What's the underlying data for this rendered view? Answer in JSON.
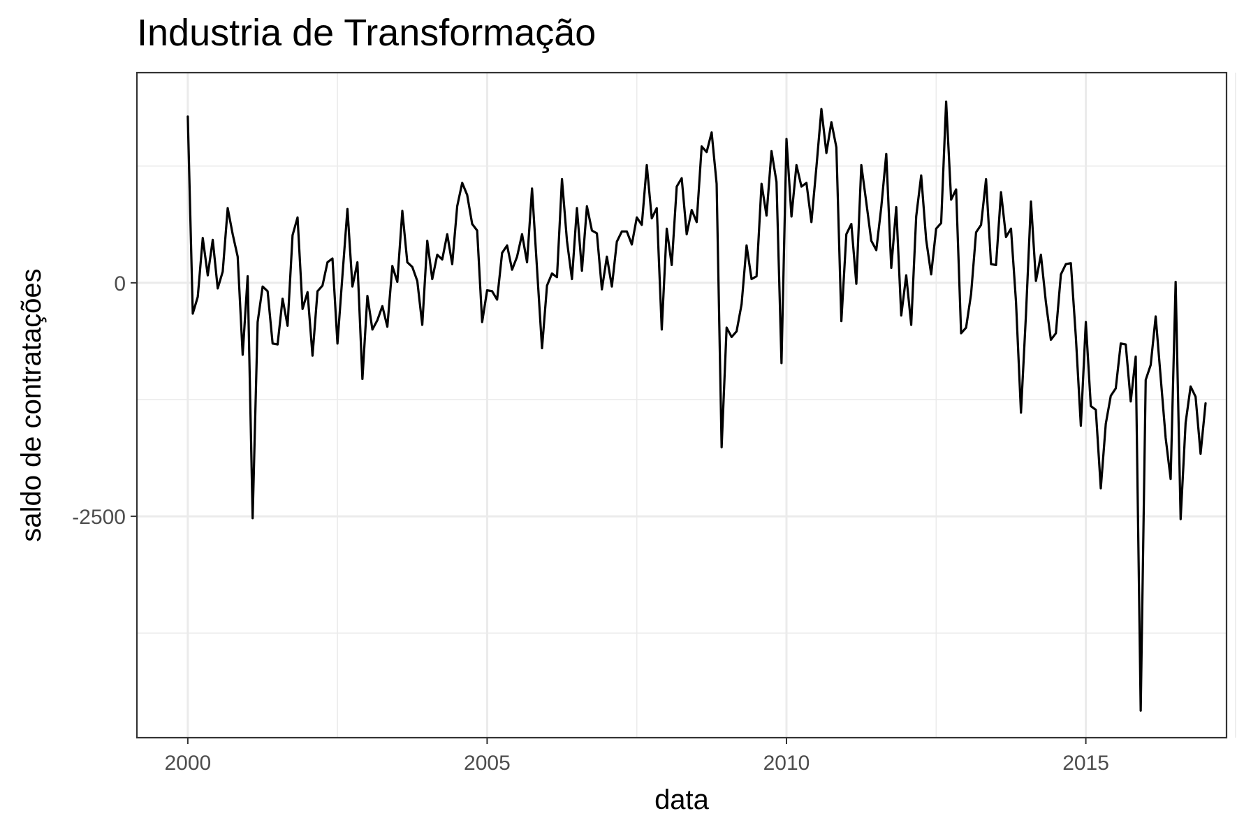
{
  "chart_data": {
    "type": "line",
    "title": "Industria de Transformação",
    "xlabel": "data",
    "ylabel": "saldo de contratações",
    "x_ticks": [
      2000,
      2005,
      2010,
      2015
    ],
    "x_tick_labels": [
      "2000",
      "2005",
      "2010",
      "2015"
    ],
    "y_ticks": [
      0,
      -2500
    ],
    "y_tick_labels": [
      "0",
      "-2500"
    ],
    "x_minor_ticks": [
      2002.5,
      2007.5,
      2012.5,
      2017.5
    ],
    "y_minor_ticks": [
      1250,
      -1250,
      -3750
    ],
    "xlim": [
      1999.15,
      2017.35
    ],
    "ylim": [
      -4870,
      2250
    ],
    "grid": true,
    "series": [
      {
        "x_start": 2000.0,
        "x_step_months": 1,
        "values": [
          1780,
          -330,
          -150,
          480,
          80,
          460,
          -60,
          120,
          800,
          520,
          280,
          -770,
          70,
          -2520,
          -420,
          -40,
          -90,
          -650,
          -660,
          -170,
          -460,
          510,
          700,
          -280,
          -100,
          -780,
          -90,
          -30,
          220,
          260,
          -650,
          80,
          790,
          -40,
          220,
          -1030,
          -140,
          -500,
          -400,
          -250,
          -470,
          180,
          10,
          770,
          220,
          170,
          20,
          -450,
          450,
          40,
          300,
          250,
          520,
          200,
          820,
          1070,
          940,
          630,
          560,
          -420,
          -80,
          -90,
          -180,
          320,
          400,
          140,
          280,
          520,
          220,
          1010,
          150,
          -700,
          -30,
          100,
          60,
          1110,
          450,
          40,
          800,
          130,
          820,
          560,
          530,
          -70,
          280,
          -40,
          440,
          550,
          550,
          410,
          700,
          620,
          1260,
          690,
          800,
          -500,
          580,
          190,
          1030,
          1120,
          520,
          780,
          650,
          1460,
          1400,
          1610,
          1060,
          -1760,
          -480,
          -580,
          -520,
          -230,
          400,
          40,
          70,
          1060,
          720,
          1410,
          1080,
          -860,
          1540,
          710,
          1260,
          1030,
          1070,
          650,
          1240,
          1860,
          1390,
          1720,
          1450,
          -410,
          520,
          630,
          -10,
          1260,
          860,
          450,
          350,
          810,
          1380,
          160,
          810,
          -350,
          80,
          -450,
          710,
          1150,
          460,
          90,
          580,
          640,
          1940,
          890,
          1000,
          -540,
          -480,
          -120,
          540,
          620,
          1110,
          200,
          190,
          970,
          490,
          580,
          -200,
          -1390,
          -340,
          870,
          20,
          300,
          -210,
          -610,
          -540,
          90,
          200,
          210,
          -580,
          -1530,
          -420,
          -1320,
          -1360,
          -2200,
          -1510,
          -1210,
          -1130,
          -650,
          -660,
          -1270,
          -790,
          -4580,
          -1040,
          -880,
          -360,
          -1010,
          -1660,
          -2100,
          10,
          -2530,
          -1500,
          -1110,
          -1220,
          -1830,
          -1290
        ]
      }
    ]
  }
}
